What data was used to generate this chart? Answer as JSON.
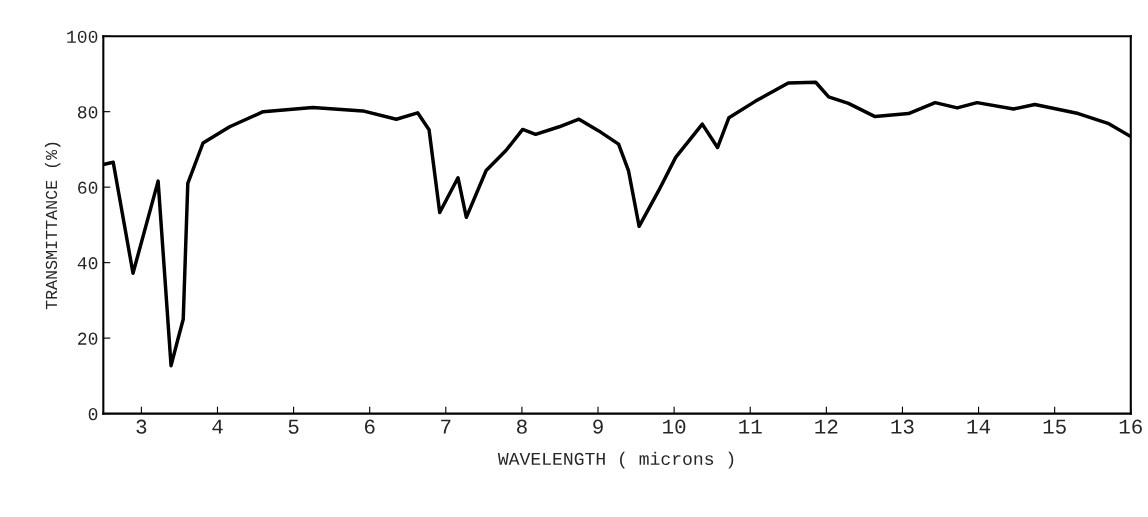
{
  "chart_data": {
    "type": "line",
    "xlabel": "WAVELENGTH ( microns )",
    "ylabel": "TRANSMITTANCE (%)",
    "xlim": [
      2.5,
      16
    ],
    "xticks": [
      3,
      4,
      5,
      6,
      7,
      8,
      9,
      10,
      11,
      12,
      13,
      14,
      15,
      16
    ],
    "ylim": [
      0,
      100
    ],
    "yticks": [
      0,
      20,
      40,
      60,
      80,
      100
    ],
    "grid": false,
    "legend": false,
    "series": [
      {
        "color": "#000000",
        "x": [
          2.5,
          2.63,
          2.89,
          3.22,
          3.39,
          3.48,
          3.55,
          3.61,
          3.81,
          4.16,
          4.6,
          5.25,
          5.91,
          6.35,
          6.63,
          6.78,
          6.92,
          7.16,
          7.27,
          7.53,
          7.79,
          8.01,
          8.18,
          8.49,
          8.75,
          9.01,
          9.27,
          9.4,
          9.54,
          9.8,
          10.02,
          10.37,
          10.57,
          10.72,
          11.07,
          11.5,
          11.86,
          12.03,
          12.29,
          12.64,
          13.08,
          13.43,
          13.72,
          13.98,
          14.46,
          14.74,
          15.31,
          15.7,
          16.0
        ],
        "values": [
          66,
          66.6,
          37.2,
          61.6,
          12.7,
          19.7,
          25,
          61,
          71.7,
          76,
          80,
          81.1,
          80.2,
          78,
          79.7,
          75.2,
          53.3,
          62.5,
          52,
          64.4,
          69.7,
          75.3,
          74,
          76,
          78,
          74.9,
          71.4,
          64.4,
          49.6,
          59.2,
          67.9,
          76.7,
          70.5,
          78.4,
          82.8,
          87.6,
          87.8,
          83.9,
          82.2,
          78.7,
          79.5,
          82.4,
          81,
          82.4,
          80.7,
          81.9,
          79.5,
          76.9,
          73.4
        ]
      }
    ]
  }
}
